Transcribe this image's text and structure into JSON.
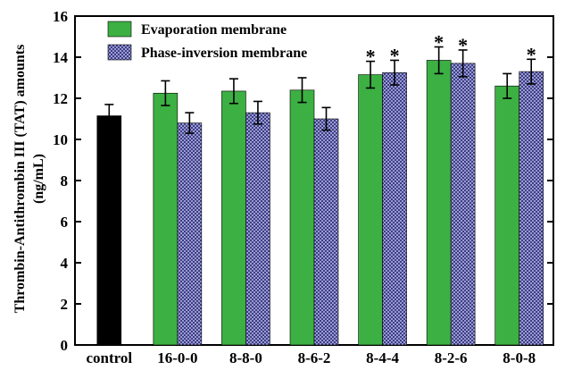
{
  "chart_data": {
    "type": "bar",
    "ylabel_line1": "Thrombin-Antithrombin III (TAT) amounts",
    "ylabel_line2": "(ng/mL)",
    "ylim": [
      0,
      16
    ],
    "yticks": [
      "0",
      "2",
      "4",
      "6",
      "8",
      "10",
      "12",
      "14",
      "16"
    ],
    "categories": [
      "control",
      "16-0-0",
      "8-8-0",
      "8-6-2",
      "8-4-4",
      "8-2-6",
      "8-0-8"
    ],
    "legend_position": "top-left",
    "significance_marker": "*",
    "control": {
      "value": 11.15,
      "error": 0.55,
      "color": "#000000"
    },
    "series": [
      {
        "name": "Evaporation membrane",
        "color": "#3cb043",
        "pattern": "solid",
        "values": [
          null,
          12.25,
          12.35,
          12.4,
          13.15,
          13.85,
          12.6
        ],
        "errors": [
          null,
          0.6,
          0.6,
          0.6,
          0.65,
          0.65,
          0.6
        ],
        "significant": [
          false,
          false,
          false,
          false,
          true,
          true,
          false
        ]
      },
      {
        "name": "Phase-inversion membrane",
        "color": "#6f70ad",
        "pattern": "crosshatch",
        "values": [
          null,
          10.8,
          11.3,
          11.0,
          13.25,
          13.7,
          13.3
        ],
        "errors": [
          null,
          0.5,
          0.55,
          0.55,
          0.6,
          0.65,
          0.6
        ],
        "significant": [
          false,
          false,
          false,
          false,
          true,
          true,
          true
        ]
      }
    ]
  }
}
